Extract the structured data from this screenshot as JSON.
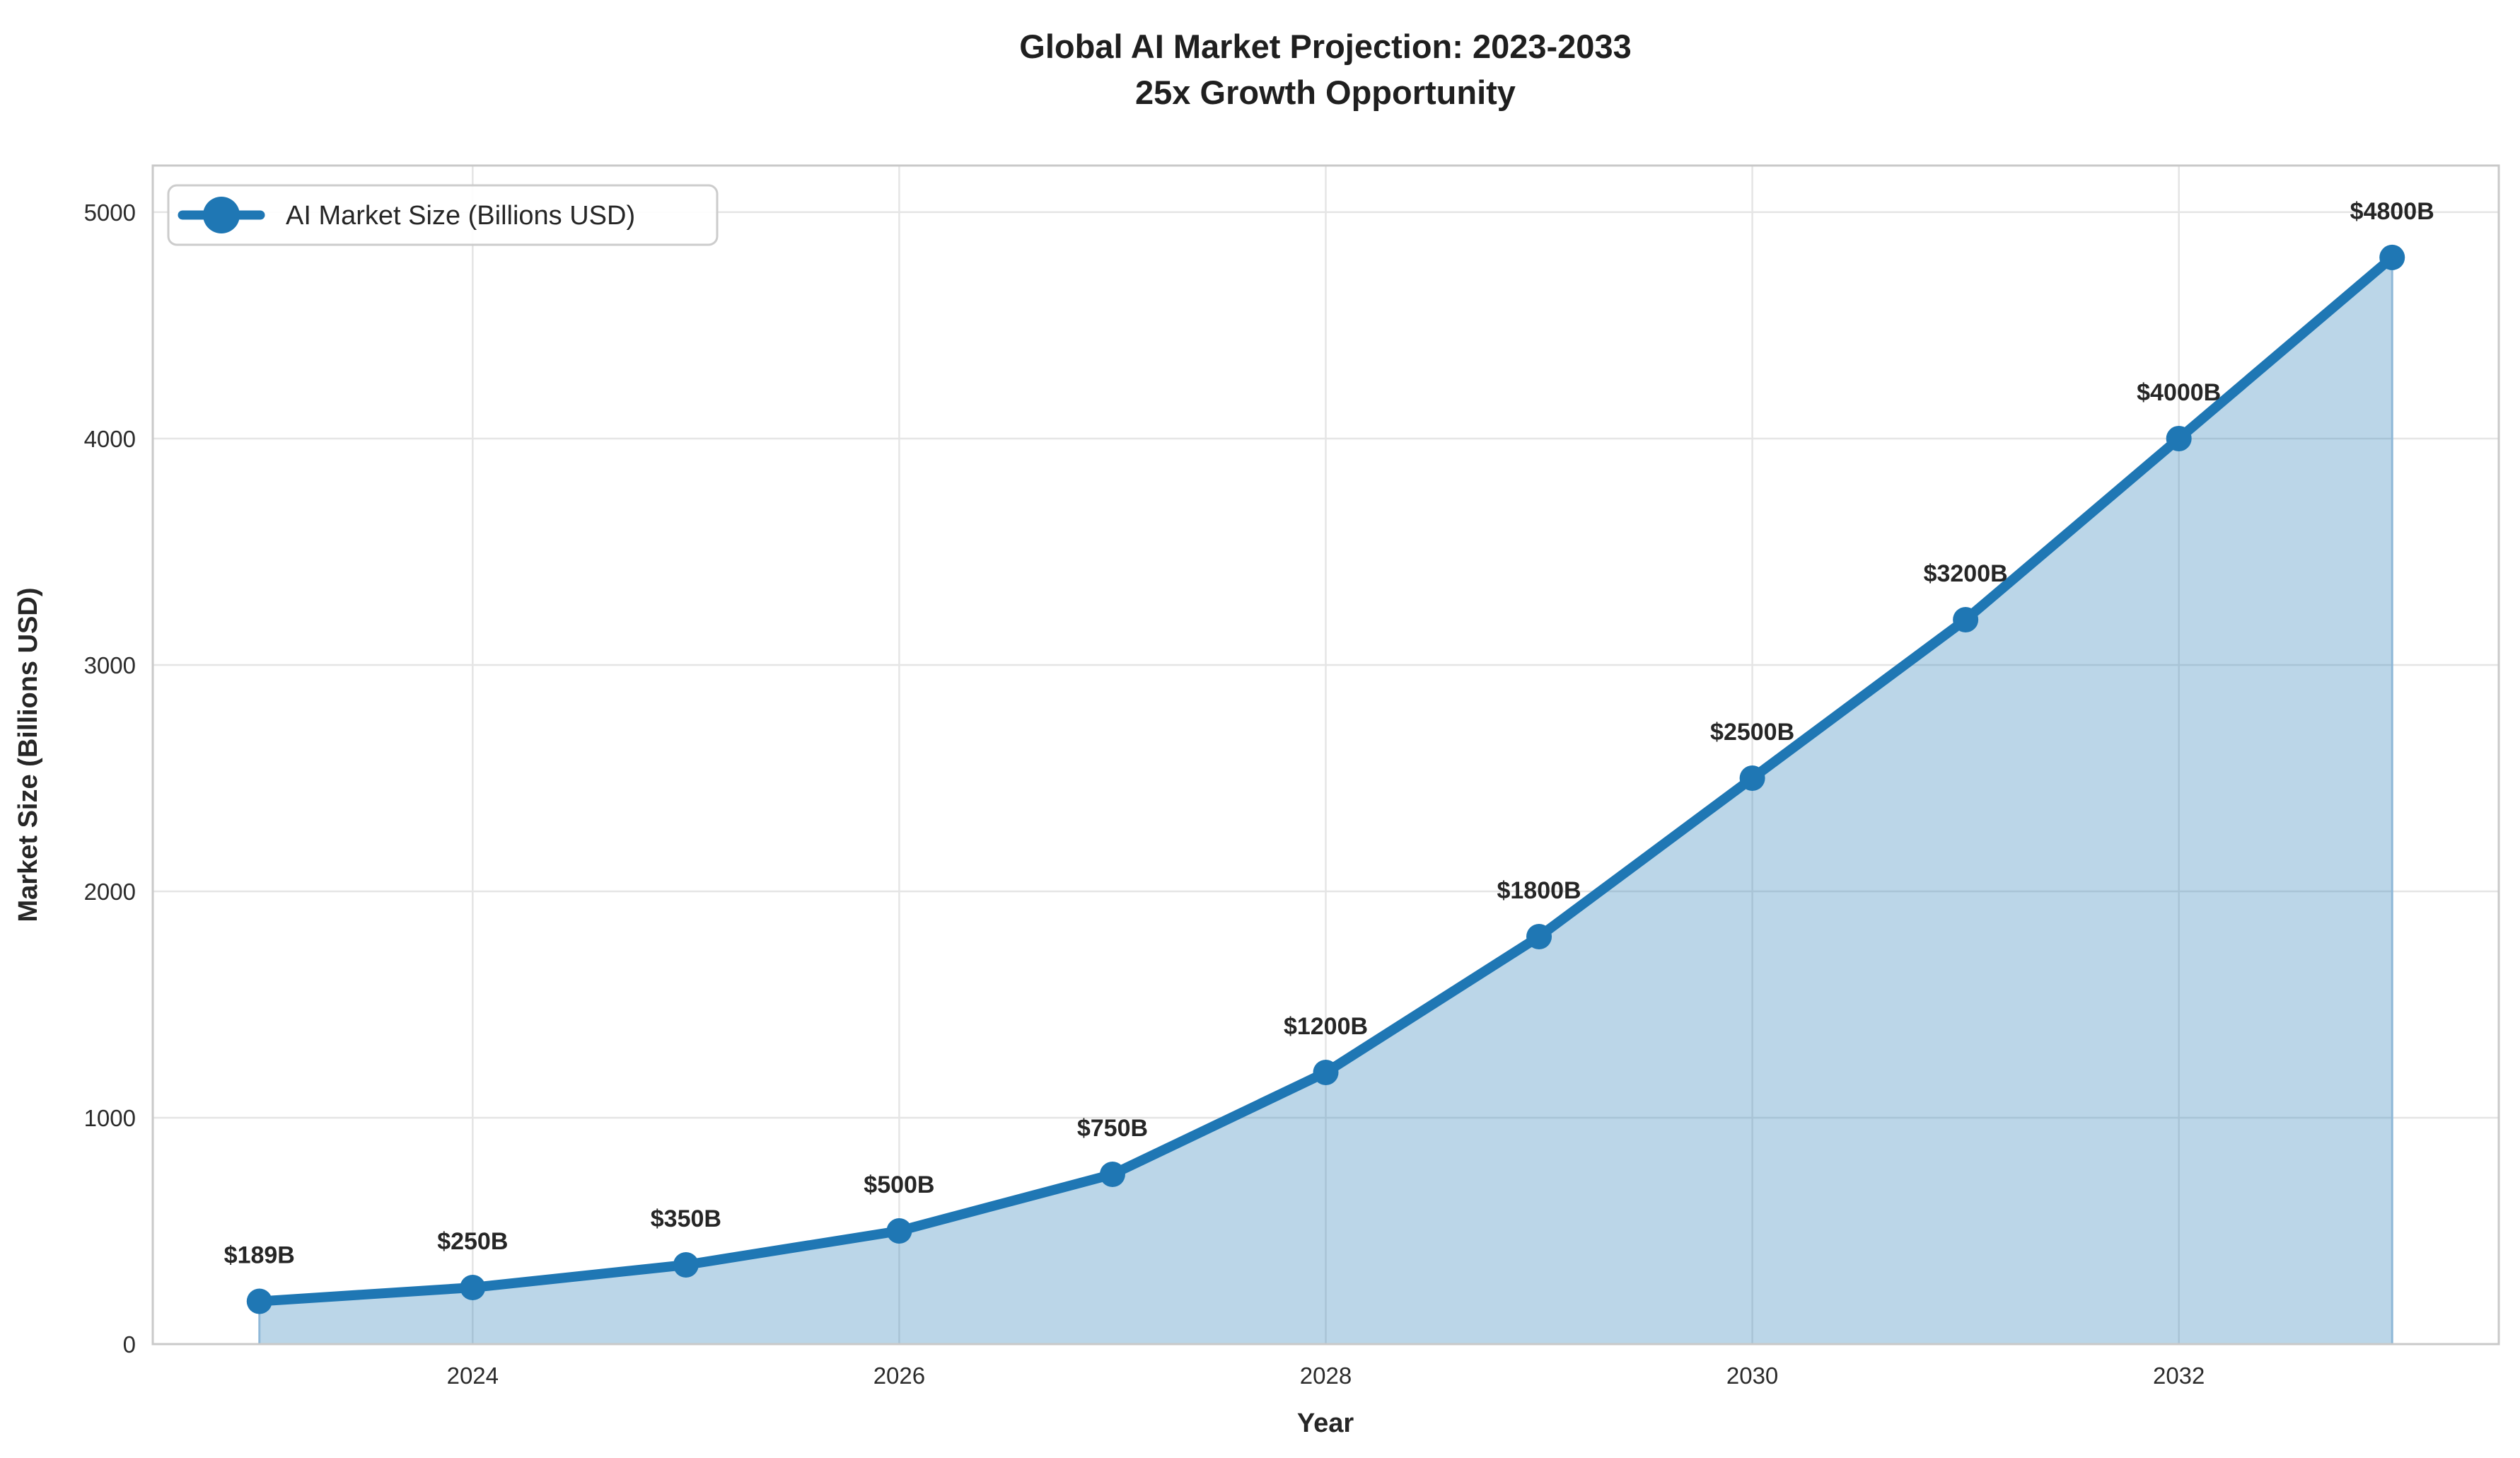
{
  "title": {
    "line1": "Global AI Market Projection: 2023-2033",
    "line2": "25x Growth Opportunity"
  },
  "chart_data": {
    "type": "area",
    "x": [
      2023,
      2024,
      2025,
      2026,
      2027,
      2028,
      2029,
      2030,
      2031,
      2032,
      2033
    ],
    "series": [
      {
        "name": "AI Market Size (Billions USD)",
        "values": [
          189,
          250,
          350,
          500,
          750,
          1200,
          1800,
          2500,
          3200,
          4000,
          4800
        ]
      }
    ],
    "point_labels": [
      "$189B",
      "$250B",
      "$350B",
      "$500B",
      "$750B",
      "$1200B",
      "$1800B",
      "$2500B",
      "$3200B",
      "$4000B",
      "$4800B"
    ],
    "xlabel": "Year",
    "ylabel": "Market Size (Billions USD)",
    "xticks": [
      2024,
      2026,
      2028,
      2030,
      2032
    ],
    "yticks": [
      0,
      1000,
      2000,
      3000,
      4000,
      5000
    ],
    "xlim": [
      2022.5,
      2033.5
    ],
    "ylim": [
      0,
      5206
    ],
    "grid": true,
    "legend": {
      "label": "AI Market Size (Billions USD)",
      "position": "upper left"
    },
    "colors": {
      "line": "#1f77b4",
      "marker": "#1f77b4",
      "fill": "#1f77b4",
      "fill_opacity": 0.3,
      "fill_edge": "#8fb8d8",
      "grid": "#e5e5e5",
      "spine": "#c9c9c9",
      "title_text": "#1f1f1f",
      "text": "#262626",
      "tick_text": "#2b2b2b",
      "legend_border": "#cccccc",
      "legend_bg": "#ffffff"
    }
  }
}
